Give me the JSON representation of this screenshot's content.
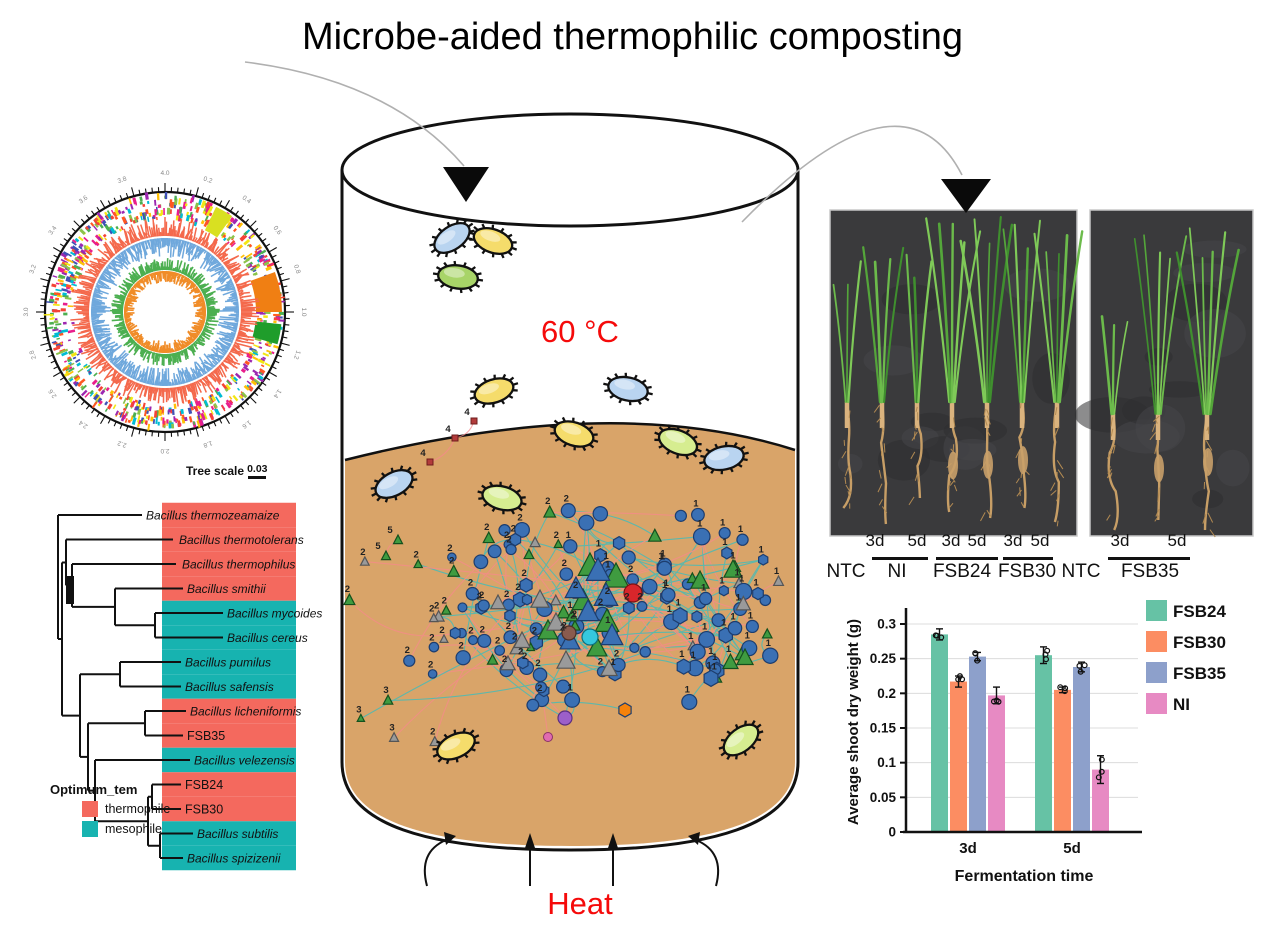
{
  "title": "Microbe-aided thermophilic composting",
  "genome_map": {
    "annotation_palette": [
      "#E91E8C",
      "#F2E713",
      "#8BC34A",
      "#00BCD4",
      "#FF5722",
      "#9C27B0",
      "#3F51B5",
      "#4CAF50",
      "#FFC107",
      "#F44336"
    ],
    "gc_skew_outer": "#F4694C",
    "gc_skew_inner": "#6FA8DC",
    "inner_ring_outer": "#4CAF50",
    "inner_ring_inner": "#F08C28",
    "position_label_start": 0.2,
    "position_label_step": 0.2
  },
  "tree": {
    "scale_label": "Tree scale",
    "scale_value": "0.03",
    "taxa": [
      {
        "name": "Bacillus thermozeamaize",
        "optimum": "thermophile",
        "italic": true
      },
      {
        "name": "Bacillus thermotolerans",
        "optimum": "thermophile",
        "italic": true
      },
      {
        "name": "Bacillus thermophilus",
        "optimum": "thermophile",
        "italic": true
      },
      {
        "name": "Bacillus smithii",
        "optimum": "thermophile",
        "italic": true
      },
      {
        "name": "Bacillus mycoides",
        "optimum": "mesophile",
        "italic": true
      },
      {
        "name": "Bacillus cereus",
        "optimum": "mesophile",
        "italic": true
      },
      {
        "name": "Bacillus pumilus",
        "optimum": "mesophile",
        "italic": true
      },
      {
        "name": "Bacillus safensis",
        "optimum": "mesophile",
        "italic": true
      },
      {
        "name": "Bacillus licheniformis",
        "optimum": "thermophile",
        "italic": true
      },
      {
        "name": "FSB35",
        "optimum": "thermophile",
        "italic": false
      },
      {
        "name": "Bacillus velezensis",
        "optimum": "mesophile",
        "italic": true
      },
      {
        "name": "FSB24",
        "optimum": "thermophile",
        "italic": false
      },
      {
        "name": "FSB30",
        "optimum": "thermophile",
        "italic": false
      },
      {
        "name": "Bacillus subtilis",
        "optimum": "mesophile",
        "italic": true
      },
      {
        "name": "Bacillus spizizenii",
        "optimum": "mesophile",
        "italic": true
      }
    ],
    "legend": {
      "title": "Optimum_tem",
      "items": [
        {
          "label": "thermophile",
          "color": "#F4695E"
        },
        {
          "label": "mesophile",
          "color": "#17B3B0"
        }
      ]
    }
  },
  "composter": {
    "temperature_label": "60 °C",
    "heat_label": "Heat",
    "compost_color": "#D9A469"
  },
  "network": {
    "module_labels": [
      "1",
      "2",
      "3",
      "4",
      "5"
    ],
    "edge_colors": {
      "teal": "#2FBFC4",
      "salmon": "#F8898C"
    },
    "node_colors": {
      "blue": "#3A70B4",
      "green": "#3F9B40",
      "gray": "#9A9A9A",
      "red": "#D8262B",
      "orange": "#F5820B",
      "purple": "#9C5FC9",
      "brown": "#8A5B4E",
      "cyan": "#35C8DE"
    }
  },
  "seedling_panels": {
    "left": {
      "tick_labels": [
        "3d",
        "5d",
        "3d",
        "5d",
        "3d",
        "5d"
      ],
      "group_labels": [
        "NTC",
        "NI",
        "FSB24",
        "FSB30"
      ]
    },
    "right": {
      "tick_labels": [
        "3d",
        "5d"
      ],
      "group_labels": [
        "NTC",
        "FSB35"
      ]
    }
  },
  "chart_data": {
    "type": "bar",
    "categories": [
      "3d",
      "5d"
    ],
    "series": [
      {
        "name": "FSB24",
        "color": "#66C2A5",
        "values": [
          0.285,
          0.255
        ],
        "errors": [
          0.008,
          0.012
        ]
      },
      {
        "name": "FSB30",
        "color": "#FC8D62",
        "values": [
          0.217,
          0.205
        ],
        "errors": [
          0.008,
          0.004
        ]
      },
      {
        "name": "FSB35",
        "color": "#8DA0CB",
        "values": [
          0.253,
          0.238
        ],
        "errors": [
          0.006,
          0.007
        ]
      },
      {
        "name": "NI",
        "color": "#E78AC3",
        "values": [
          0.197,
          0.09
        ],
        "errors": [
          0.012,
          0.02
        ]
      }
    ],
    "title": "",
    "xlabel": "Fermentation time",
    "ylabel": "Average shoot dry weight (g)",
    "ylim": [
      0,
      0.32
    ],
    "yticks": [
      "0",
      "0.05",
      "0.1",
      "0.15",
      "0.2",
      "0.25",
      "0.3"
    ],
    "grid": true,
    "legend_position": "right"
  }
}
